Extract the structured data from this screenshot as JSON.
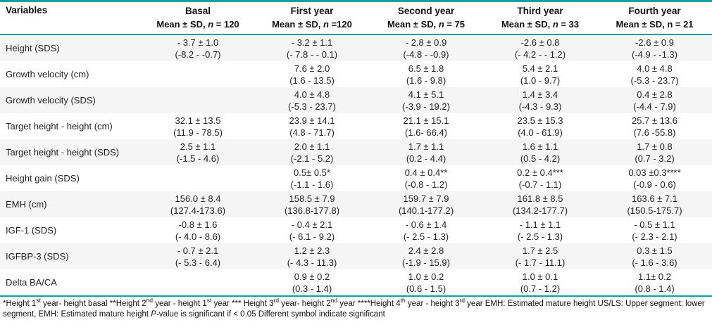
{
  "theme": {
    "accent_teal": "#169f9f"
  },
  "table": {
    "columns": [
      {
        "label": "Variables",
        "sub_prefix": "",
        "sub_n": "",
        "sub_rest": ""
      },
      {
        "label": "Basal",
        "sub_prefix": "Mean ± SD, ",
        "sub_n": "n",
        "sub_rest": " = 120"
      },
      {
        "label": "First year",
        "sub_prefix": "Mean ± SD, ",
        "sub_n": "n",
        "sub_rest": " =120"
      },
      {
        "label": "Second year",
        "sub_prefix": "Mean ± SD, ",
        "sub_n": "n",
        "sub_rest": " = 75"
      },
      {
        "label": "Third year",
        "sub_prefix": "Mean ± SD, ",
        "sub_n": "n",
        "sub_rest": " = 33"
      },
      {
        "label": "Fourth year",
        "sub_prefix": "Mean ± SD, n = 21",
        "sub_n": "",
        "sub_rest": ""
      }
    ],
    "rows": [
      {
        "variable": "Height (SDS)",
        "cells": [
          {
            "mean": "- 3.7 ± 1.0",
            "range": "(-8.2 - -0.7)"
          },
          {
            "mean": "- 3.2 ± 1.1",
            "range": "(- 7.8 - - 0.1)"
          },
          {
            "mean": "- 2.8 ± 0.9",
            "range": "(-4.8 - -0.9)"
          },
          {
            "mean": "-2.6 ± 0.8",
            "range": "(- 4.2 - - 1.2)"
          },
          {
            "mean": "-2.6 ± 0.9",
            "range": "(-4.9 - -1.3)"
          }
        ]
      },
      {
        "variable": "Growth velocity (cm)",
        "cells": [
          {
            "mean": "",
            "range": ""
          },
          {
            "mean": "7.6 ± 2.0",
            "range": "(1.6 - 13.5)"
          },
          {
            "mean": "6.5 ± 1.8",
            "range": "(1.6 - 9.8)"
          },
          {
            "mean": "5.4 ± 2.1",
            "range": "(1.0 - 9.7)"
          },
          {
            "mean": "4.0 ± 4.8",
            "range": "(-5.3 - 23.7)"
          }
        ]
      },
      {
        "variable": "Growth velocity (SDS)",
        "cells": [
          {
            "mean": "",
            "range": ""
          },
          {
            "mean": "4.0 ± 4.8",
            "range": "(-5.3 - 23.7)"
          },
          {
            "mean": "4.1 ± 5.1",
            "range": "(-3.9 - 19.2)"
          },
          {
            "mean": "1.4 ± 3.4",
            "range": "(-4.3 - 9.3)"
          },
          {
            "mean": "0.4 ± 2.8",
            "range": "(-4.4 - 7.9)"
          }
        ]
      },
      {
        "variable": "Target height - height (cm)",
        "cells": [
          {
            "mean": "32.1 ± 13.5",
            "range": "(11.9 - 78.5)"
          },
          {
            "mean": "23.9 ± 14.1",
            "range": "(4.8 - 71.7)"
          },
          {
            "mean": "21.1 ± 15.1",
            "range": "(1.6- 66.4)"
          },
          {
            "mean": "23.5 ± 15.3",
            "range": "(4.0 - 61.9)"
          },
          {
            "mean": "25.7 ± 13.6",
            "range": "(7.6 -55.8)"
          }
        ]
      },
      {
        "variable": "Target height - height (SDS)",
        "cells": [
          {
            "mean": "2.5 ± 1.1",
            "range": "(-1.5 - 4.6)"
          },
          {
            "mean": "2.0 ± 1.1",
            "range": "(-2.1 - 5.2)"
          },
          {
            "mean": "1.7 ± 1.1",
            "range": "(0.2 - 4.4)"
          },
          {
            "mean": "1.6 ± 1.1",
            "range": "(0.5 - 4.2)"
          },
          {
            "mean": "1.7 ± 0.8",
            "range": "(0.7 - 3.2)"
          }
        ]
      },
      {
        "variable": "Height gain (SDS)",
        "cells": [
          {
            "mean": "",
            "range": ""
          },
          {
            "mean": "0.5± 0.5*",
            "range": "(-1.1 - 1.6)"
          },
          {
            "mean": "0.4 ± 0.4**",
            "range": "(-0.8 - 1.2)"
          },
          {
            "mean": "0.2 ± 0.4***",
            "range": "(-0.7 - 1.1)"
          },
          {
            "mean": "0.03 ±0.3****",
            "range": "(-0.9 - 0.6)"
          }
        ]
      },
      {
        "variable": "EMH (cm)",
        "cells": [
          {
            "mean": "156.0 ± 8.4",
            "range": "(127.4-173.6)"
          },
          {
            "mean": "158.5 ± 7.9",
            "range": "(136.8-177.8)"
          },
          {
            "mean": "159.7 ± 7.9",
            "range": "(140.1-177.2)"
          },
          {
            "mean": "161.8 ± 8.5",
            "range": "(134.2-177.7)"
          },
          {
            "mean": "163.6 ± 7.1",
            "range": "(150.5-175.7)"
          }
        ]
      },
      {
        "variable": "IGF-1 (SDS)",
        "cells": [
          {
            "mean": "-0.8 ± 1.6",
            "range": "(- 4.0 - 8.6)"
          },
          {
            "mean": "- 0.4 ± 2.1",
            "range": "(- 6.1 - 9.2)"
          },
          {
            "mean": "- 0.6 ± 1.4",
            "range": "(- 2.5 - 1.3)"
          },
          {
            "mean": "- 1.1 ± 1.1",
            "range": "(- 2.5 - 1.3)"
          },
          {
            "mean": "- 0.5 ± 1.1",
            "range": "(- 2.3 - 2.1)"
          }
        ]
      },
      {
        "variable": "IGFBP-3 (SDS)",
        "cells": [
          {
            "mean": "- 0.7 ± 2.1",
            "range": "(- 5.3 - 6.4)"
          },
          {
            "mean": "1.2 ± 2.3",
            "range": "(- 4.3 - 11.3)"
          },
          {
            "mean": "2.4 ± 2.8",
            "range": "(-1.9 - 15.9)"
          },
          {
            "mean": "1.7 ± 2.5",
            "range": "(- 1.7 - 11.1)"
          },
          {
            "mean": "0.3 ± 1.5",
            "range": "(- 1.6 - 3.6)"
          }
        ]
      },
      {
        "variable": "Delta BA/CA",
        "cells": [
          {
            "mean": "",
            "range": ""
          },
          {
            "mean": "0.9 ± 0.2",
            "range": "(0.3 - 1.4)"
          },
          {
            "mean": "1.0 ± 0.2",
            "range": "(0.6 - 1.5)"
          },
          {
            "mean": "1.0 ± 0.1",
            "range": "(0.7 - 1.2)"
          },
          {
            "mean": "1.1± 0.2",
            "range": "(0.8 - 1.4)"
          }
        ]
      }
    ],
    "footnote": [
      {
        "t": "*Height 1"
      },
      {
        "t": "st",
        "sup": true
      },
      {
        "t": " year- height basal **Height 2"
      },
      {
        "t": "nd",
        "sup": true
      },
      {
        "t": " year - height 1"
      },
      {
        "t": "st",
        "sup": true
      },
      {
        "t": " year *** Height 3"
      },
      {
        "t": "rd",
        "sup": true
      },
      {
        "t": " year- height 2"
      },
      {
        "t": "nd",
        "sup": true
      },
      {
        "t": " year ****Height 4"
      },
      {
        "t": "th",
        "sup": true
      },
      {
        "t": " year - height 3"
      },
      {
        "t": "rd",
        "sup": true
      },
      {
        "t": " year EMH: Estimated mature height US/LS: Upper segment: lower segment, EMH: Estimated mature height "
      },
      {
        "t": "P",
        "i": true
      },
      {
        "t": "-value is significant if < 0.05 Different symbol indicate significant"
      }
    ]
  }
}
